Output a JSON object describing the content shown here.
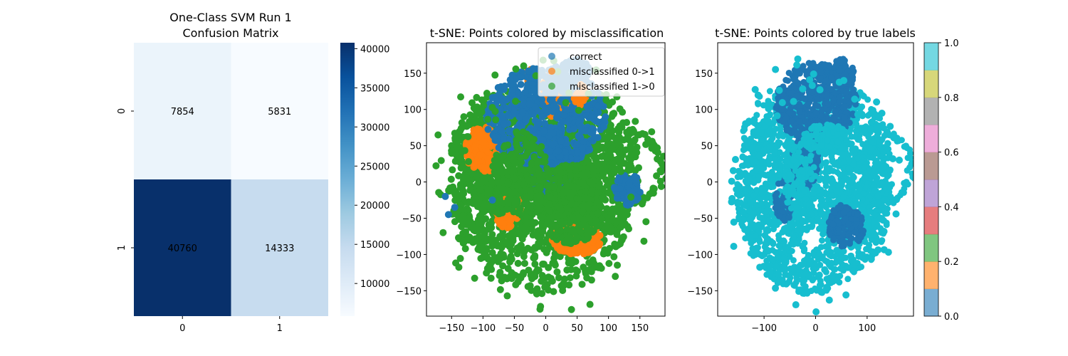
{
  "chart_data": [
    {
      "type": "heatmap",
      "title_lines": [
        "One-Class SVM Run 1",
        "Confusion Matrix"
      ],
      "row_labels": [
        "0",
        "1"
      ],
      "col_labels": [
        "0",
        "1"
      ],
      "values": [
        [
          7854,
          5831
        ],
        [
          40760,
          14333
        ]
      ],
      "colormap": "Blues",
      "vmin": 5831,
      "vmax": 40760,
      "colorbar_ticks": [
        10000,
        15000,
        20000,
        25000,
        30000,
        35000,
        40000
      ]
    },
    {
      "type": "scatter",
      "title": "t-SNE: Points colored by misclassification",
      "xlim": [
        -190,
        190
      ],
      "ylim": [
        -185,
        192
      ],
      "xticks": [
        -150,
        -100,
        -50,
        0,
        50,
        100,
        150
      ],
      "yticks": [
        -150,
        -100,
        -50,
        0,
        50,
        100,
        150
      ],
      "legend_position": "upper-right",
      "series": [
        {
          "name": "correct",
          "color": "#1f77b4",
          "alpha": 0.7
        },
        {
          "name": "misclassified 0->1",
          "color": "#ff7f0e",
          "alpha": 0.7
        },
        {
          "name": "misclassified 1->0",
          "color": "#2ca02c",
          "alpha": 0.7
        }
      ]
    },
    {
      "type": "scatter",
      "title": "t-SNE: Points colored by true labels",
      "xlim": [
        -190,
        190
      ],
      "ylim": [
        -185,
        192
      ],
      "xticks": [
        -100,
        0,
        100
      ],
      "yticks": [
        -150,
        -100,
        -50,
        0,
        50,
        100,
        150
      ],
      "colormap": "tab10",
      "colorbar_ticks": [
        0.0,
        0.2,
        0.4,
        0.6,
        0.8,
        1.0
      ],
      "colorbar_tick_labels": [
        "0.0",
        "0.2",
        "0.4",
        "0.6",
        "0.8",
        "1.0"
      ],
      "colorbar_colors": [
        "#1f77b4",
        "#ff7f0e",
        "#2ca02c",
        "#d62728",
        "#9467bd",
        "#8c564b",
        "#e377c2",
        "#7f7f7f",
        "#bcbd22",
        "#17becf"
      ],
      "label_colors": {
        "0": "#1f77b4",
        "1": "#17becf"
      }
    }
  ]
}
